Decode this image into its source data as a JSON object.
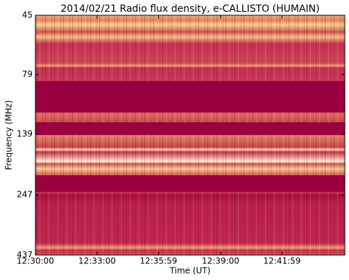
{
  "chart_data": {
    "type": "spectrogram",
    "title": "2014/02/21  Radio flux density, e-CALLISTO (HUMAIN)",
    "x_label": "Time (UT)",
    "y_label": "Frequency (MHz)",
    "xlim": [
      45000,
      45902
    ],
    "xticks": [
      {
        "value": 45000,
        "label": "12:30:00"
      },
      {
        "value": 45180,
        "label": "12:33:00"
      },
      {
        "value": 45359,
        "label": "12:35:59"
      },
      {
        "value": 45540,
        "label": "12:39:00"
      },
      {
        "value": 45719,
        "label": "12:41:59"
      }
    ],
    "ylim": [
      45,
      437
    ],
    "yscale": "log",
    "yinverted": true,
    "yticks": [
      45,
      79,
      139,
      247,
      437
    ],
    "bands": [
      [
        84,
        113
      ],
      [
        124,
        140
      ],
      [
        205,
        240
      ]
    ],
    "band_color": "#9a0040"
  }
}
